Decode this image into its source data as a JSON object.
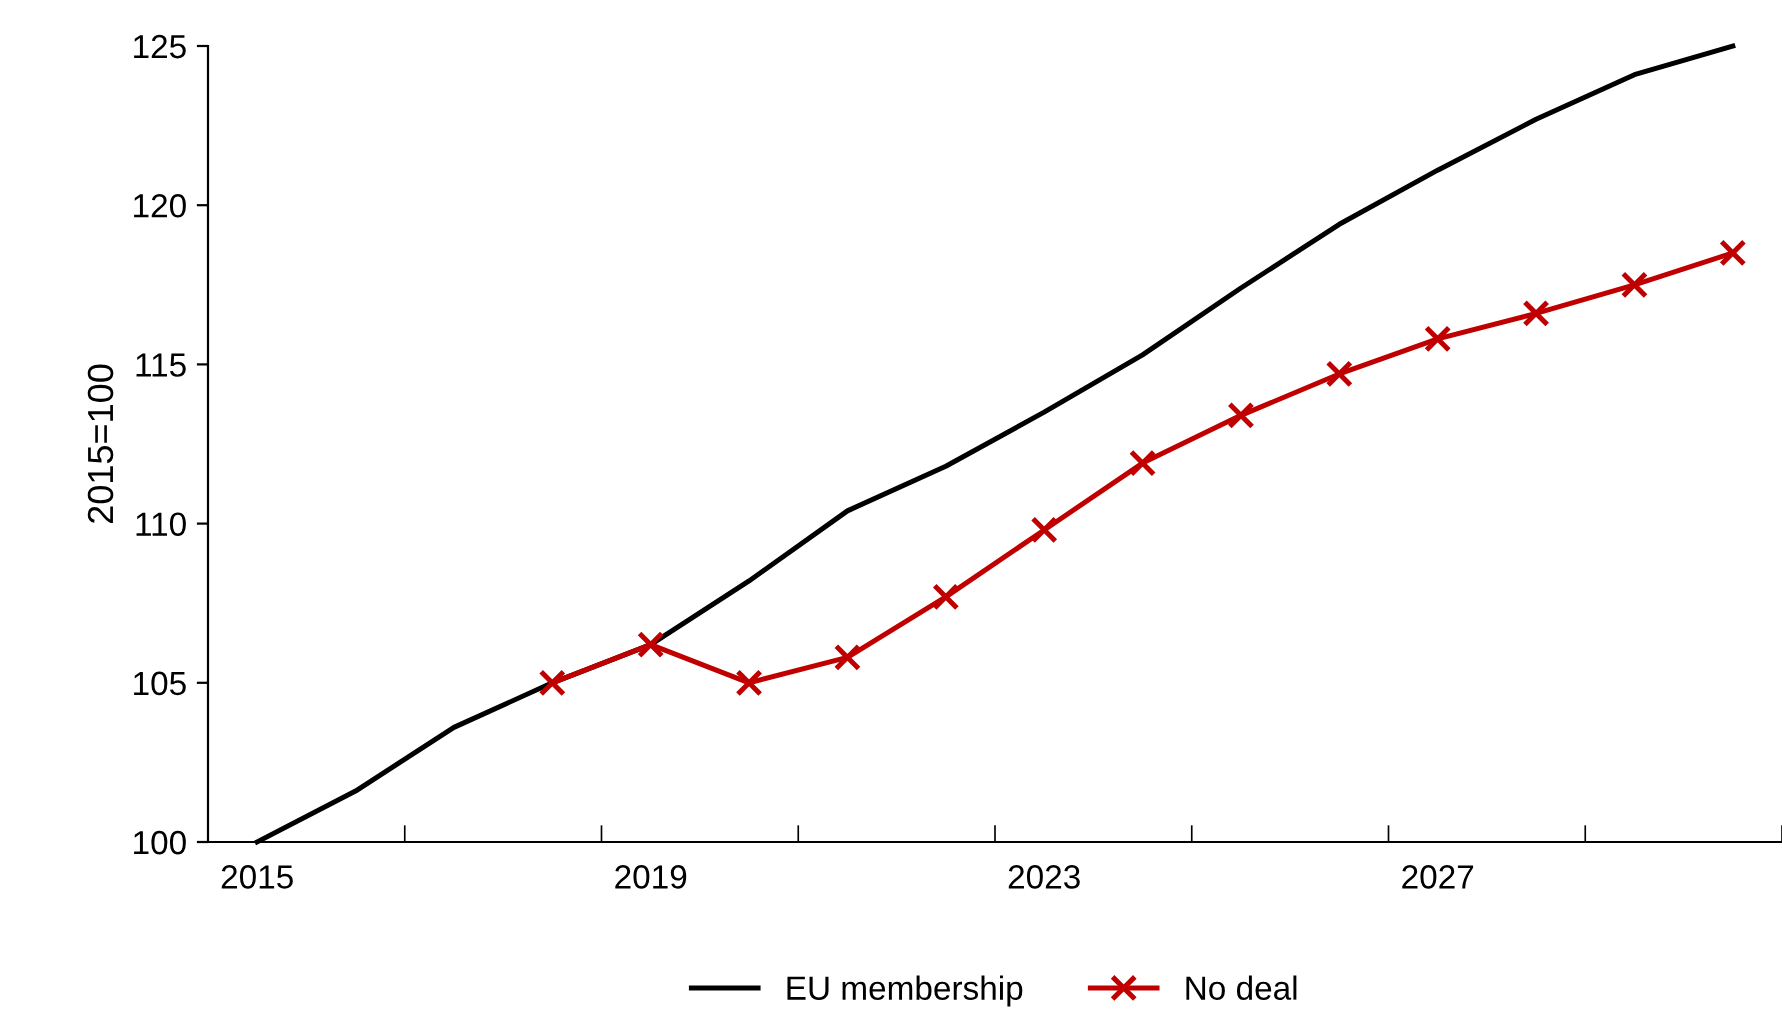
{
  "chart_data": {
    "type": "line",
    "ylabel": "2015=100",
    "categories": [
      "2015",
      null,
      null,
      null,
      "2019",
      null,
      null,
      null,
      "2023",
      null,
      null,
      null,
      "2027",
      null,
      null,
      null
    ],
    "ylim": [
      100,
      125
    ],
    "yticks": [
      100,
      105,
      110,
      115,
      120,
      125
    ],
    "grid": false,
    "legend": "bottom",
    "series": [
      {
        "name": "EU membership",
        "color": "#000000",
        "marker": "none",
        "values": [
          100,
          101.6,
          103.6,
          105.0,
          106.2,
          108.2,
          110.4,
          111.8,
          113.5,
          115.3,
          117.4,
          119.4,
          121.1,
          122.7,
          124.1,
          125
        ]
      },
      {
        "name": "No deal",
        "color": "#c00000",
        "marker": "cross",
        "values": [
          null,
          null,
          null,
          105.0,
          106.2,
          105.0,
          105.8,
          107.7,
          109.8,
          111.9,
          113.4,
          114.7,
          115.8,
          116.6,
          117.5,
          118.5
        ]
      }
    ]
  }
}
